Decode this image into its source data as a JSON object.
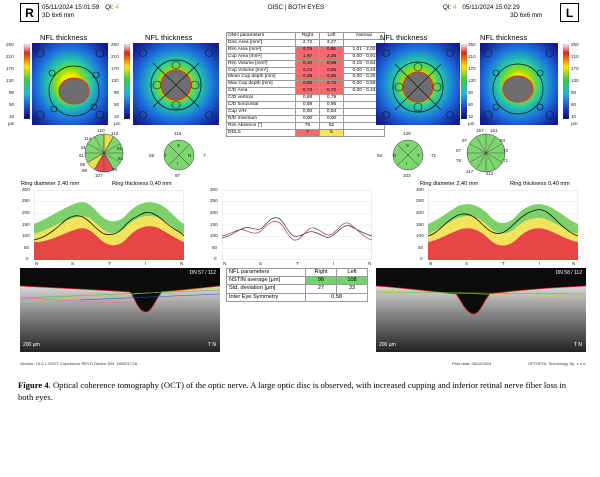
{
  "header": {
    "left_eye_badge": "R",
    "right_eye_badge": "L",
    "left_datetime": "05/11/2024 15:01:59",
    "left_qi_label": "QI:",
    "left_qi_value": "4",
    "left_mode": "3D  6x6 mm",
    "center_title": "DISC | BOTH EYES",
    "right_qi_label": "QI:",
    "right_qi_value": "4",
    "right_datetime": "05/11/2024 15:02:29",
    "right_mode": "3D  6x6 mm"
  },
  "map_titles": [
    "NFL thickness",
    "NFL thickness",
    "NFL thickness",
    "NFL thickness"
  ],
  "colorbar": {
    "ticks": [
      "250",
      "210",
      "170",
      "130",
      "90",
      "50",
      "10"
    ],
    "unit": "µm"
  },
  "onh": {
    "headers": [
      "ONH parameters",
      "Right",
      "Left",
      "Normal"
    ],
    "rows": [
      {
        "name": "Disc Area [mm²]",
        "right": "2,72",
        "left": "3,27",
        "normal": "",
        "rc": "",
        "lc": ""
      },
      {
        "name": "Rim Area [mm²]",
        "right": "0,75",
        "left": "0,91",
        "normal": "1,01 - 2,00",
        "rc": "red",
        "lc": "red"
      },
      {
        "name": "Cup Area [mm²]",
        "right": "1,97",
        "left": "2,36",
        "normal": "0,00 - 0,91",
        "rc": "red",
        "lc": "red"
      },
      {
        "name": "Rim Volume [mm³]",
        "right": "0,10",
        "left": "0,06",
        "normal": "0,15 - 0,54",
        "rc": "red",
        "lc": "red"
      },
      {
        "name": "Cup Volume [mm³]",
        "right": "0,74",
        "left": "0,85",
        "normal": "0,00 - 0,24",
        "rc": "red",
        "lc": "red"
      },
      {
        "name": "Mean Cup depth [mm]",
        "right": "0,38",
        "left": "0,36",
        "normal": "0,00 - 0,29",
        "rc": "red",
        "lc": "red"
      },
      {
        "name": "Max Cup depth [mm]",
        "right": "0,65",
        "left": "0,72",
        "normal": "0,00 - 0,59",
        "rc": "red",
        "lc": "red"
      },
      {
        "name": "C/D Area",
        "right": "0,73",
        "left": "0,72",
        "normal": "0,00 - 0,43",
        "rc": "red",
        "lc": "red"
      },
      {
        "name": "C/D vertical",
        "right": "0,88",
        "left": "0,79",
        "normal": "",
        "rc": "",
        "lc": ""
      },
      {
        "name": "C/D horizontal",
        "right": "0,89",
        "left": "0,95",
        "normal": "",
        "rc": "",
        "lc": ""
      },
      {
        "name": "Cup V/H",
        "right": "0,90",
        "left": "0,84",
        "normal": "",
        "rc": "",
        "lc": ""
      },
      {
        "name": "R/D minimum",
        "right": "0,00",
        "left": "0,00",
        "normal": "",
        "rc": "",
        "lc": ""
      },
      {
        "name": "Rim Absence [°]",
        "right": "75",
        "left": "52",
        "normal": "",
        "rc": "",
        "lc": ""
      },
      {
        "name": "DDLS",
        "right": "7",
        "left": "6",
        "normal": "",
        "rc": "red",
        "lc": "yel"
      }
    ]
  },
  "clock_left": {
    "labels": [
      "120",
      "112",
      "114",
      "51",
      "61",
      "91",
      "58",
      "84",
      "89",
      "94",
      "107"
    ]
  },
  "quad_left": {
    "labels": [
      "115",
      "59",
      "T",
      "N",
      "I",
      "7",
      "S",
      "97"
    ]
  },
  "quad_right": {
    "labels": [
      "135",
      "S",
      "93",
      "N",
      "T",
      "71",
      "I",
      "103"
    ]
  },
  "clock_right": {
    "labels": [
      "157",
      "161",
      "97",
      "93",
      "87",
      "73",
      "78",
      "71",
      "117",
      "112"
    ]
  },
  "profile_left": {
    "title": "Ring diameter 2,40 mm",
    "subtitle": "Ring thickness 0,40 mm",
    "yticks": [
      "300",
      "250",
      "200",
      "150",
      "100",
      "50",
      "0"
    ],
    "xticks": [
      "N",
      "S",
      "T",
      "I",
      "N"
    ]
  },
  "profile_center": {
    "yticks": [
      "300",
      "250",
      "200",
      "150",
      "100",
      "50",
      "0"
    ],
    "xticks": [
      "N",
      "S",
      "T",
      "I",
      "N"
    ]
  },
  "profile_right": {
    "title": "Ring diameter 2,40 mm",
    "subtitle": "Ring thickness 0,40 mm",
    "yticks": [
      "300",
      "250",
      "200",
      "150",
      "100",
      "50",
      "0"
    ],
    "xticks": [
      "N",
      "S",
      "T",
      "I",
      "N"
    ]
  },
  "bscan_left": {
    "label": "DN  57 / 112",
    "scale": "200 µm",
    "tn": "T  N"
  },
  "bscan_right": {
    "label": "DN  58 / 112",
    "scale": "200 µm",
    "tn": "T  N"
  },
  "nfl_params": {
    "headers": [
      "NFL parameters",
      "Right",
      "Left"
    ],
    "rows": [
      {
        "name": "NSTIN average [µm]",
        "right": "96",
        "left": "108",
        "rc": "grn",
        "lc": "grn"
      },
      {
        "name": "Std. deviation [µm]",
        "right": "27",
        "left": "33",
        "rc": "",
        "lc": ""
      }
    ],
    "symmetry_label": "Inter Eye Symmetry",
    "symmetry_value": "0,58"
  },
  "footer": {
    "version": "Version: 10.0.1",
    "device": "SOCT Copernicus REVO",
    "serial": "Device S/N: 1550017/16",
    "print_date": "Print date: 26/12/2024",
    "company": "OPTOPOL Technology Sp. z o.o."
  },
  "caption": {
    "label": "Figure 4",
    "text": ". Optical coherence tomography (OCT) of the optic nerve. A large optic disc is observed, with increased cupping and inferior retinal nerve fiber loss in both eyes."
  }
}
